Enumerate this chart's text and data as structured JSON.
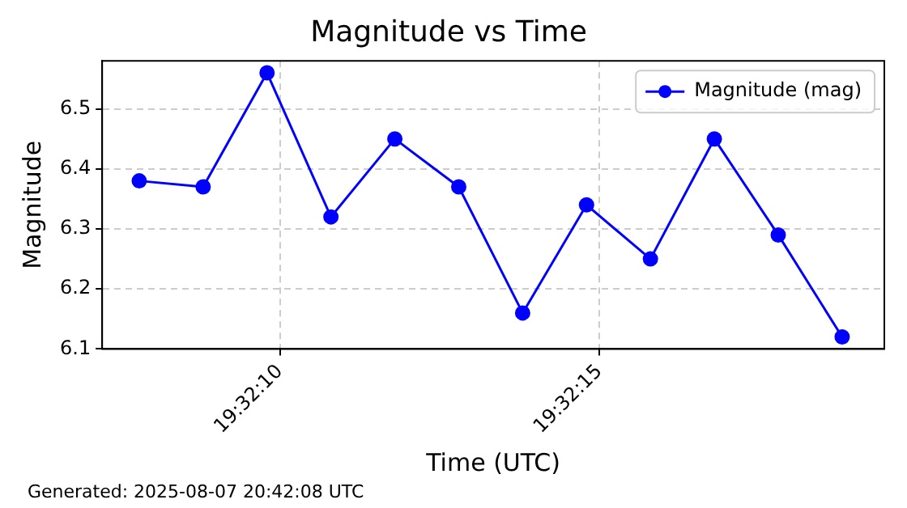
{
  "chart_data": {
    "type": "line",
    "title": "Magnitude vs Time",
    "xlabel": "Time (UTC)",
    "ylabel": "Magnitude",
    "x": [
      19.5355,
      19.5357778,
      19.5360556,
      19.5363333,
      19.5366111,
      19.5368889,
      19.5371667,
      19.5374444,
      19.5377222,
      19.538,
      19.5382778,
      19.5385556
    ],
    "series": [
      {
        "name": "Magnitude (mag)",
        "color": "#0000ff",
        "values": [
          6.38,
          6.37,
          6.56,
          6.32,
          6.45,
          6.37,
          6.16,
          6.34,
          6.25,
          6.45,
          6.29,
          6.12
        ]
      }
    ],
    "xlim": [
      19.5353389,
      19.5387389
    ],
    "xticks": [
      {
        "value": 19.5361111,
        "label": "19:32:10"
      },
      {
        "value": 19.5375,
        "label": "19:32:15"
      }
    ],
    "ylim": [
      6.1,
      6.58
    ],
    "yticks": [
      6.1,
      6.2,
      6.3,
      6.4,
      6.5
    ],
    "grid": true,
    "legend": "top right",
    "marker": "circle",
    "line_style": "solid",
    "annotations": [
      "Generated: 2025-08-07 20:42:08 UTC"
    ]
  }
}
